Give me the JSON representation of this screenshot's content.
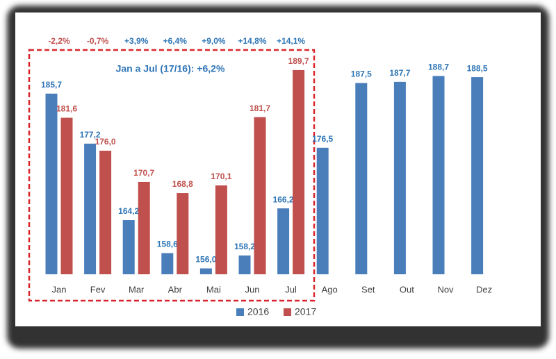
{
  "chart_data": {
    "type": "bar",
    "categories": [
      "Jan",
      "Fev",
      "Mar",
      "Abr",
      "Mai",
      "Jun",
      "Jul",
      "Ago",
      "Set",
      "Out",
      "Nov",
      "Dez"
    ],
    "series": [
      {
        "name": "2016",
        "color": "#4a7ebb",
        "label_color": "#2e75b6",
        "values": [
          185.7,
          177.2,
          164.2,
          158.6,
          156.0,
          158.2,
          166.2,
          176.5,
          187.5,
          187.7,
          188.7,
          188.5
        ],
        "value_labels": [
          "185,7",
          "177,2",
          "164,2",
          "158,6",
          "156,0",
          "158,2",
          "166,2",
          "176,5",
          "187,5",
          "187,7",
          "188,7",
          "188,5"
        ]
      },
      {
        "name": "2017",
        "color": "#c0504d",
        "label_color": "#c0504d",
        "values": [
          181.6,
          176.0,
          170.7,
          168.8,
          170.1,
          181.7,
          189.7,
          null,
          null,
          null,
          null,
          null
        ],
        "value_labels": [
          "181,6",
          "176,0",
          "170,7",
          "168,8",
          "170,1",
          "181,7",
          "189,7",
          null,
          null,
          null,
          null,
          null
        ]
      }
    ],
    "changes": [
      {
        "label": "-2,2%",
        "color": "#c0504d"
      },
      {
        "label": "-0,7%",
        "color": "#c0504d"
      },
      {
        "label": "+3,9%",
        "color": "#2e75b6"
      },
      {
        "label": "+6,4%",
        "color": "#2e75b6"
      },
      {
        "label": "+9,0%",
        "color": "#2e75b6"
      },
      {
        "label": "+14,8%",
        "color": "#2e75b6"
      },
      {
        "label": "+14,1%",
        "color": "#2e75b6"
      }
    ],
    "box_annotation": "Jan a Jul (17/16): +6,2%",
    "ylim": [
      155,
      195
    ],
    "legend": "bottom"
  }
}
